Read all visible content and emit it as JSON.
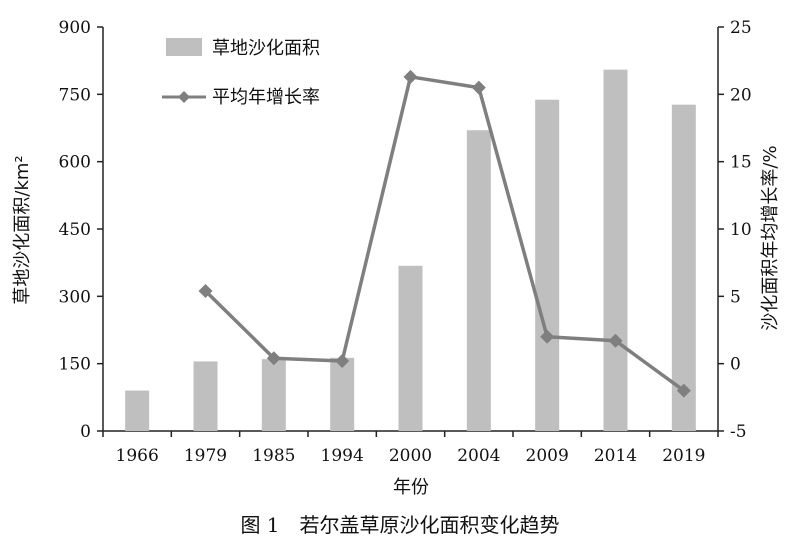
{
  "chart_data": {
    "type": "bar",
    "categories": [
      "1966",
      "1979",
      "1985",
      "1994",
      "2000",
      "2004",
      "2009",
      "2014",
      "2019"
    ],
    "series": [
      {
        "name": "草地沙化面积",
        "type": "bar",
        "axis": "left",
        "color": "#bfbfbf",
        "values": [
          90,
          155,
          160,
          163,
          368,
          670,
          738,
          805,
          727
        ]
      },
      {
        "name": "平均年增长率",
        "type": "line",
        "axis": "right",
        "marker": "diamond",
        "color": "#7f7f7f",
        "values": [
          null,
          5.4,
          0.4,
          0.2,
          21.3,
          20.5,
          2.0,
          1.7,
          -2.0
        ]
      }
    ],
    "xlabel": "年份",
    "ylabel": "草地沙化面积/km²",
    "y2label": "沙化面积年均增长率/%",
    "ylim": [
      0,
      900
    ],
    "y_ticks": [
      0,
      150,
      300,
      450,
      600,
      750,
      900
    ],
    "y2lim": [
      -5,
      25
    ],
    "y2_ticks": [
      -5,
      0,
      5,
      10,
      15,
      20,
      25
    ],
    "grid": false,
    "legend_position": "top-left",
    "caption": "图 1　若尔盖草原沙化面积变化趋势"
  }
}
